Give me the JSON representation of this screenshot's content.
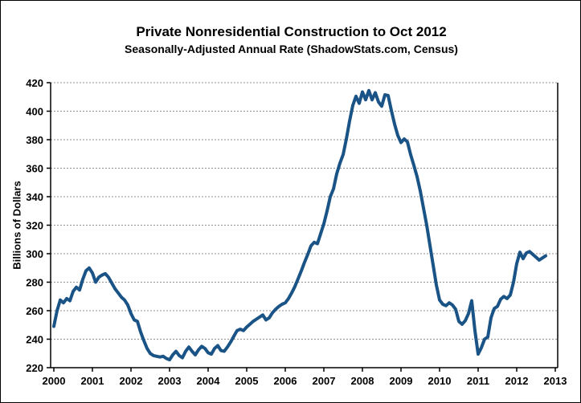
{
  "page": {
    "title": "Private Nonresidential Construction to Oct 2012",
    "subtitle": "Seasonally-Adjusted Annual Rate (ShadowStats.com, Census)"
  },
  "chart_data": {
    "type": "line",
    "title": "Private Nonresidential Construction to Oct 2012",
    "subtitle": "Seasonally-Adjusted Annual Rate (ShadowStats.com, Census)",
    "ylabel": "Billions of Dollars",
    "xlabel": "",
    "frequency": "monthly",
    "x_start_label": "Jan 2000",
    "x_end_label": "Oct 2012",
    "ylim": [
      220,
      420
    ],
    "xlim": [
      2000,
      2013.125
    ],
    "yticks": [
      220,
      240,
      260,
      280,
      300,
      320,
      340,
      360,
      380,
      400,
      420
    ],
    "xticks": [
      2000,
      2001,
      2002,
      2003,
      2004,
      2005,
      2006,
      2007,
      2008,
      2009,
      2010,
      2011,
      2012,
      2013
    ],
    "grid": "horizontal-dotted",
    "legend": "none",
    "line_color": "#1a5386",
    "values": [
      249,
      260,
      267.5,
      265.5,
      268.5,
      267,
      273.5,
      276.5,
      274.5,
      282,
      288,
      290,
      286.5,
      280,
      283.5,
      285,
      286,
      283.5,
      279.5,
      275.5,
      272.5,
      269.5,
      267.5,
      264,
      258,
      253.5,
      252.5,
      245,
      239,
      233.5,
      230,
      228.5,
      228,
      227.5,
      228,
      226.5,
      225.5,
      229,
      231.5,
      228.5,
      227,
      231.5,
      234.5,
      231.5,
      229,
      232.5,
      235,
      233.5,
      230.5,
      229.5,
      233.5,
      235.5,
      232,
      231.5,
      234.5,
      238,
      242,
      246,
      247,
      246,
      248.5,
      250.5,
      252.5,
      254,
      255.5,
      257,
      253.5,
      255,
      258.5,
      261,
      263,
      264.5,
      265.5,
      268.5,
      272.5,
      277,
      282.5,
      288,
      294,
      299.5,
      305.5,
      308,
      307,
      314,
      321,
      330,
      340,
      345.5,
      356,
      363.5,
      369.5,
      380.5,
      393,
      404,
      410.5,
      405.5,
      413.5,
      408,
      414.5,
      408,
      413,
      406.5,
      403.5,
      411.5,
      411,
      400.5,
      391,
      383,
      378,
      380.5,
      378.5,
      369.5,
      362,
      354,
      344,
      332,
      320,
      306,
      292,
      278,
      267.5,
      264.5,
      263.5,
      265.5,
      264,
      261,
      252.5,
      250.5,
      253,
      258,
      267,
      246,
      229.5,
      234,
      240,
      241.5,
      255,
      261.5,
      263,
      268,
      270,
      268.5,
      271,
      280,
      293,
      301,
      296.5,
      300.5,
      301.5,
      299.5,
      297.5,
      295.5,
      297,
      298.5
    ]
  }
}
